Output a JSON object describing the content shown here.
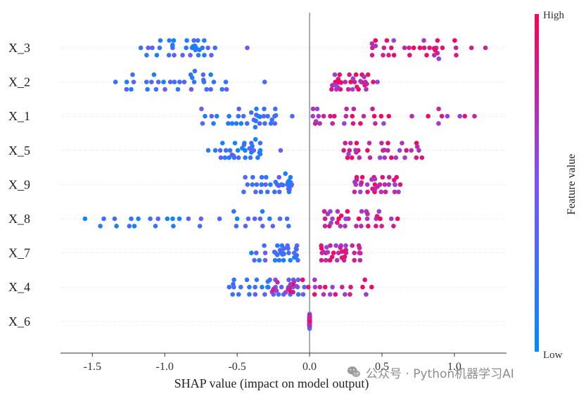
{
  "chart_data": {
    "type": "scatter",
    "subtype": "shap-beeswarm",
    "xlabel": "SHAP value (impact on model output)",
    "xlim": [
      -1.72,
      1.36
    ],
    "x_ticks": [
      -1.5,
      -1.0,
      -0.5,
      0.0,
      0.5,
      1.0
    ],
    "x_tick_labels": [
      "-1.5",
      "-1.0",
      "-0.5",
      "0.0",
      "0.5",
      "1.0"
    ],
    "features": [
      "X_3",
      "X_2",
      "X_1",
      "X_5",
      "X_9",
      "X_8",
      "X_7",
      "X_4",
      "X_6"
    ],
    "colorbar": {
      "label": "Feature value",
      "high_label": "High",
      "low_label": "Low",
      "low_color": "#008bfb",
      "high_color": "#ff0051"
    },
    "series": [
      {
        "feature": "X_3",
        "low_range": [
          -1.31,
          -0.64
        ],
        "high_range": [
          0.43,
          1.22
        ],
        "stray": [
          [
            -0.43,
            0.5
          ]
        ]
      },
      {
        "feature": "X_2",
        "low_range": [
          -1.44,
          -0.53
        ],
        "high_range": [
          0.15,
          0.48
        ],
        "stray": [
          [
            -0.31,
            0.3
          ]
        ]
      },
      {
        "feature": "X_1",
        "low_range": [
          -0.79,
          -0.23
        ],
        "high_range": [
          0.02,
          1.2
        ],
        "stray": [
          [
            -0.12,
            0.3
          ]
        ]
      },
      {
        "feature": "X_5",
        "low_range": [
          -0.71,
          -0.33
        ],
        "high_range": [
          0.22,
          0.83
        ],
        "stray": [
          [
            -0.2,
            0.4
          ]
        ]
      },
      {
        "feature": "X_9",
        "low_range": [
          -0.53,
          -0.12
        ],
        "high_range": [
          0.31,
          0.64
        ],
        "stray": []
      },
      {
        "feature": "X_8",
        "low_range": [
          -1.56,
          -0.03
        ],
        "high_range": [
          0.1,
          0.64
        ],
        "stray": []
      },
      {
        "feature": "X_7",
        "low_range": [
          -0.42,
          -0.08
        ],
        "high_range": [
          0.08,
          0.38
        ],
        "stray": []
      },
      {
        "feature": "X_4",
        "low_range": [
          -0.63,
          -0.02
        ],
        "high_range": [
          -0.26,
          0.47
        ],
        "stray": []
      },
      {
        "feature": "X_6",
        "low_range": [
          0.0,
          0.0
        ],
        "high_range": [
          0.0,
          0.0
        ],
        "stray": []
      }
    ]
  },
  "watermark": {
    "text": "公众号 · Python机器学习AI",
    "icon": "wechat-icon"
  }
}
